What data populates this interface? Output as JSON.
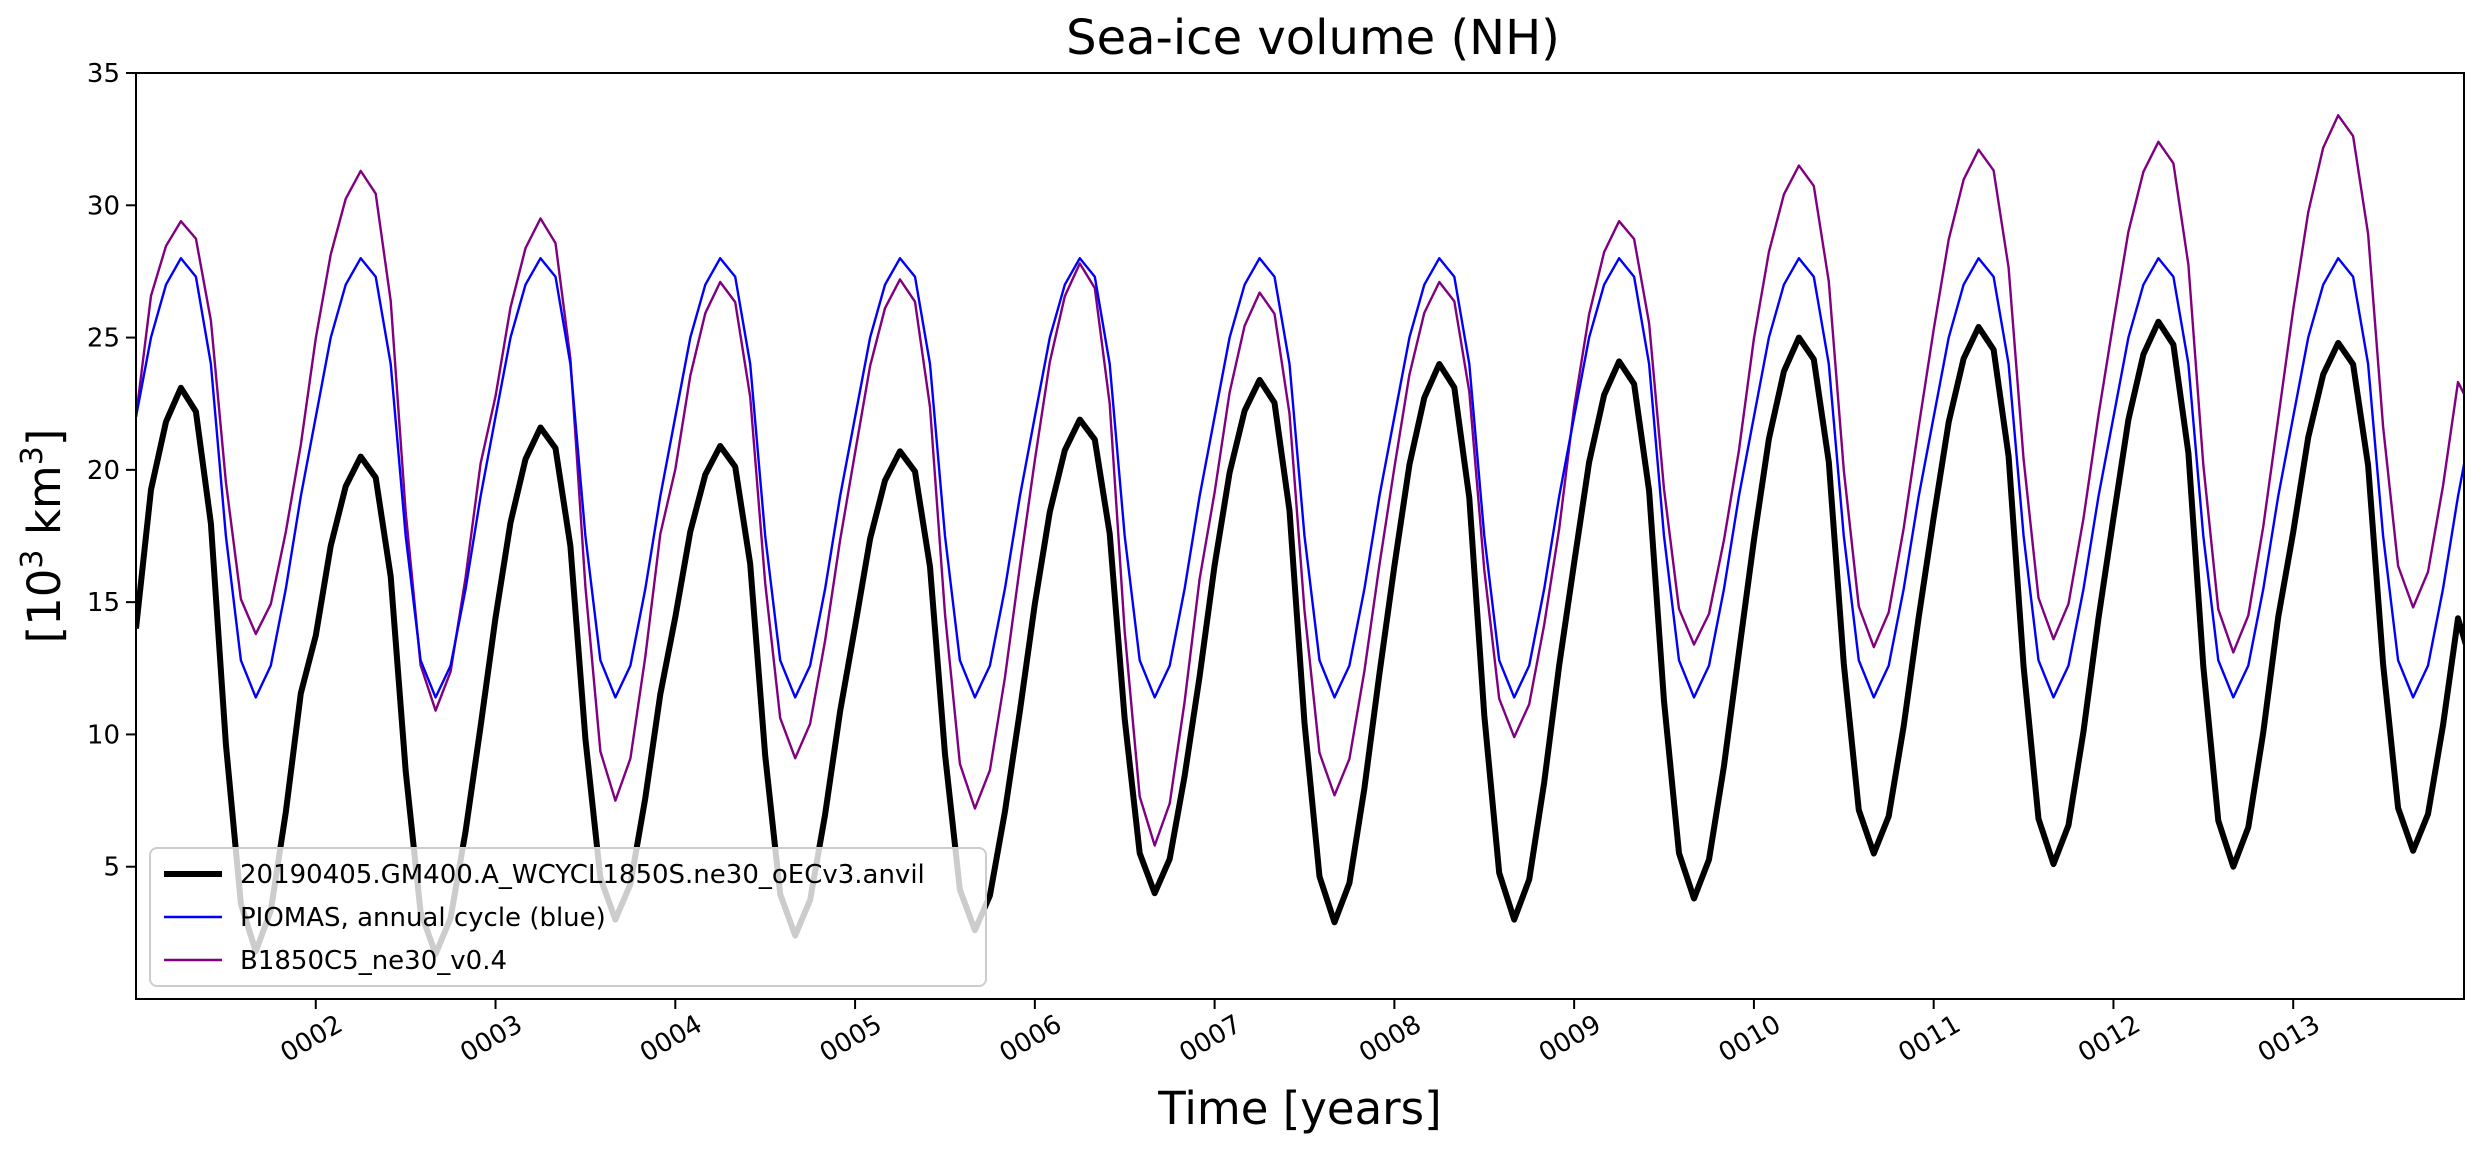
{
  "chart_data": {
    "type": "line",
    "title": "Sea-ice volume (NH)",
    "xlabel": "Time [years]",
    "ylabel_parts": {
      "prefix": "[10",
      "sup1": "3",
      "mid": " km",
      "sup2": "3",
      "suffix": "]"
    },
    "xlim": [
      1.0,
      13.95
    ],
    "ylim": [
      0,
      35
    ],
    "yticks": [
      5,
      10,
      15,
      20,
      25,
      30,
      35
    ],
    "ytick_labels": [
      "5",
      "10",
      "15",
      "20",
      "25",
      "30",
      "35"
    ],
    "xticks": [
      2,
      3,
      4,
      5,
      6,
      7,
      8,
      9,
      10,
      11,
      12,
      13
    ],
    "xtick_labels": [
      "0002",
      "0003",
      "0004",
      "0005",
      "0006",
      "0007",
      "0008",
      "0009",
      "0010",
      "0011",
      "0012",
      "0013"
    ],
    "legend_location": "lower-left",
    "x_start_year": 1,
    "months_per_year": 12,
    "piomas_annual_cycle": [
      22.0,
      25.0,
      27.0,
      28.0,
      27.3,
      24.0,
      17.5,
      12.8,
      11.4,
      12.6,
      15.5,
      19.0
    ],
    "series": [
      {
        "name": "20190405.GM400.A_WCYCL1850S.ne30_oECv3.anvil",
        "color": "#000000",
        "width": 6,
        "annual_max": [
          23.1,
          20.5,
          21.6,
          20.9,
          20.7,
          21.9,
          23.4,
          24.0,
          24.1,
          25.0,
          25.4,
          25.6,
          24.8
        ],
        "annual_min": [
          1.8,
          1.7,
          3.0,
          2.4,
          2.6,
          4.0,
          2.9,
          3.0,
          3.8,
          5.5,
          5.1,
          5.0,
          5.6
        ],
        "start_value": 14.0,
        "end_value": 12.5
      },
      {
        "name": "PIOMAS, annual cycle (blue)",
        "color": "#0000ff",
        "width": 2.4
      },
      {
        "name": "B1850C5_ne30_v0.4",
        "color": "#800080",
        "width": 2.4,
        "annual_max": [
          29.4,
          31.3,
          29.5,
          27.1,
          27.2,
          27.8,
          26.7,
          27.1,
          29.4,
          31.5,
          32.1,
          32.4,
          33.4
        ],
        "annual_min": [
          13.8,
          10.9,
          7.5,
          9.1,
          7.2,
          5.8,
          7.7,
          9.9,
          13.4,
          13.3,
          13.6,
          13.1,
          14.8
        ],
        "start_value": 22.0,
        "end_value": 22.2
      }
    ]
  }
}
